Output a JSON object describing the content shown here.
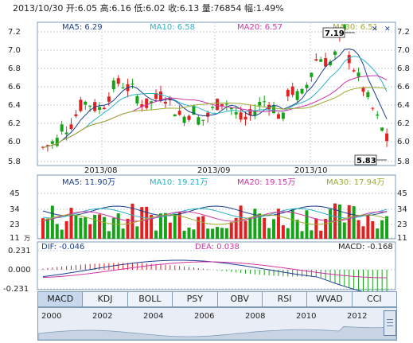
{
  "header": {
    "date": "2013/10/30",
    "open_label": "开:",
    "open_value": "6.05",
    "high_label": "高:",
    "high_value": "6.16",
    "low_label": "低:",
    "low_value": "6.02",
    "close_label": "收:",
    "close_value": "6.13",
    "volume_label": "量:",
    "volume_value": "76854",
    "change_label": "幅:",
    "change_value": "1.49%"
  },
  "price_panel": {
    "ma5": "MA5: 6.29",
    "ma10": "MA10: 6.58",
    "ma20": "MA20: 6.57",
    "ma30": "MA30: 6.51",
    "y_ticks": [
      "7.2",
      "7.0",
      "6.8",
      "6.6",
      "6.4",
      "6.2",
      "6.0",
      "5.8"
    ],
    "x_ticks": [
      "2013/08",
      "2013/09",
      "2013/10"
    ],
    "max_label": "7.19",
    "min_label": "5.83"
  },
  "volume_panel": {
    "ma5": "MA5: 11.90万",
    "ma10": "MA10: 19.21万",
    "ma20": "MA20: 19.15万",
    "ma30": "MA30: 17.94万",
    "y_ticks": [
      "45",
      "34",
      "23",
      "11"
    ],
    "unit": "万"
  },
  "macd_panel": {
    "dif": "DIF: -0.046",
    "dea": "DEA: 0.038",
    "macd": "MACD: -0.168",
    "y_ticks": [
      "0.231",
      "0.000",
      "-0.231"
    ]
  },
  "tabs": [
    "MACD",
    "KDJ",
    "BOLL",
    "PSY",
    "OBV",
    "RSI",
    "WVAD",
    "CCI"
  ],
  "timeline_years": [
    "2000",
    "2002",
    "2004",
    "2006",
    "2008",
    "2010",
    "2012"
  ],
  "colors": {
    "up": "#e32020",
    "down": "#16a317",
    "ma5": "#1a3f90",
    "ma10": "#2ab3c9",
    "ma20": "#d033a6",
    "ma30": "#9cac2e",
    "grid": "#c8cfd8"
  },
  "chart_data": {
    "type": "candlestick",
    "series": [
      {
        "name": "MA5",
        "values": []
      },
      {
        "name": "MA10",
        "values": []
      },
      {
        "name": "MA20",
        "values": []
      },
      {
        "name": "MA30",
        "values": []
      }
    ],
    "ylim": [
      5.8,
      7.25
    ],
    "max_price": 7.19,
    "min_price": 5.83
  }
}
